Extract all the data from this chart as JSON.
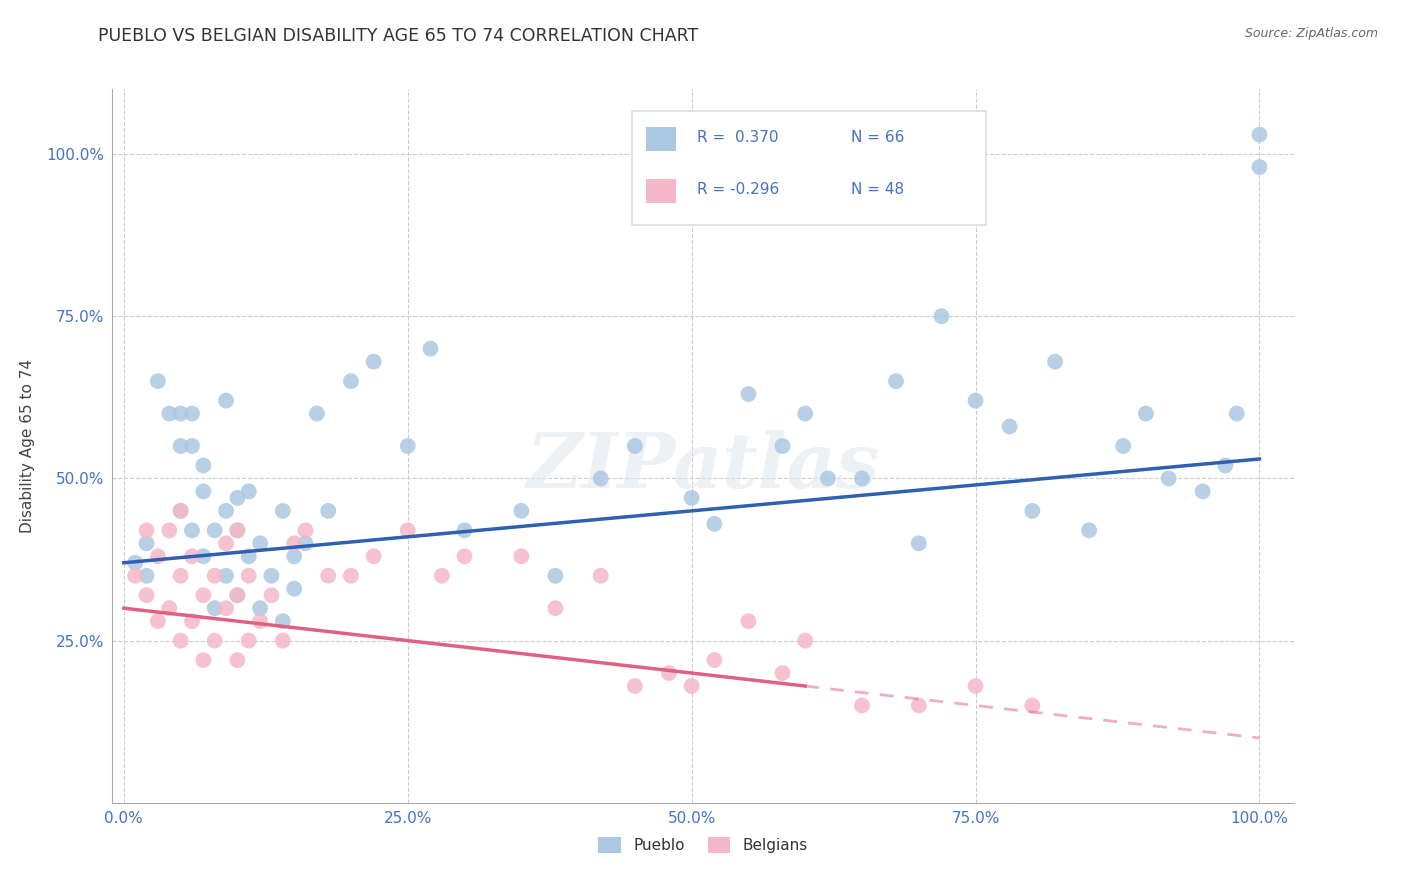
{
  "title": "PUEBLO VS BELGIAN DISABILITY AGE 65 TO 74 CORRELATION CHART",
  "source": "Source: ZipAtlas.com",
  "ylabel_label": "Disability Age 65 to 74",
  "pueblo_color": "#abc8e2",
  "belgians_color": "#f5b8c8",
  "pueblo_line_color": "#3060b0",
  "belgians_line_color": "#e06080",
  "legend_pueblo_r": "R =  0.370",
  "legend_pueblo_n": "N = 66",
  "legend_belgians_r": "R = -0.296",
  "legend_belgians_n": "N = 48",
  "pueblo_x": [
    1,
    2,
    2,
    3,
    4,
    5,
    5,
    5,
    6,
    6,
    6,
    7,
    7,
    7,
    8,
    8,
    9,
    9,
    9,
    10,
    10,
    10,
    11,
    11,
    12,
    12,
    13,
    14,
    14,
    15,
    15,
    16,
    17,
    18,
    20,
    22,
    25,
    27,
    30,
    35,
    38,
    42,
    45,
    50,
    52,
    55,
    58,
    60,
    62,
    65,
    68,
    70,
    72,
    75,
    78,
    80,
    82,
    85,
    88,
    90,
    92,
    95,
    97,
    98,
    100,
    100
  ],
  "pueblo_y": [
    37,
    40,
    35,
    65,
    60,
    55,
    45,
    60,
    60,
    42,
    55,
    38,
    48,
    52,
    30,
    42,
    35,
    62,
    45,
    32,
    47,
    42,
    38,
    48,
    30,
    40,
    35,
    45,
    28,
    38,
    33,
    40,
    60,
    45,
    65,
    68,
    55,
    70,
    42,
    45,
    35,
    50,
    55,
    47,
    43,
    63,
    55,
    60,
    50,
    50,
    65,
    40,
    75,
    62,
    58,
    45,
    68,
    42,
    55,
    60,
    50,
    48,
    52,
    60,
    98,
    103
  ],
  "belgians_x": [
    1,
    2,
    2,
    3,
    3,
    4,
    4,
    5,
    5,
    5,
    6,
    6,
    7,
    7,
    8,
    8,
    9,
    9,
    10,
    10,
    10,
    11,
    11,
    12,
    13,
    14,
    15,
    16,
    18,
    20,
    22,
    25,
    28,
    30,
    35,
    38,
    42,
    45,
    48,
    50,
    52,
    55,
    58,
    60,
    65,
    70,
    75,
    80
  ],
  "belgians_y": [
    35,
    32,
    42,
    28,
    38,
    30,
    42,
    25,
    35,
    45,
    28,
    38,
    22,
    32,
    25,
    35,
    30,
    40,
    22,
    32,
    42,
    25,
    35,
    28,
    32,
    25,
    40,
    42,
    35,
    35,
    38,
    42,
    35,
    38,
    38,
    30,
    35,
    18,
    20,
    18,
    22,
    28,
    20,
    25,
    15,
    15,
    18,
    15
  ],
  "xlim_min": -1,
  "xlim_max": 103,
  "ylim_min": 0,
  "ylim_max": 110,
  "xticks": [
    0,
    25,
    50,
    75,
    100
  ],
  "yticks": [
    25,
    50,
    75,
    100
  ],
  "xtick_labels": [
    "0.0%",
    "25.0%",
    "50.0%",
    "75.0%",
    "100.0%"
  ],
  "ytick_labels": [
    "25.0%",
    "50.0%",
    "75.0%",
    "100.0%"
  ]
}
